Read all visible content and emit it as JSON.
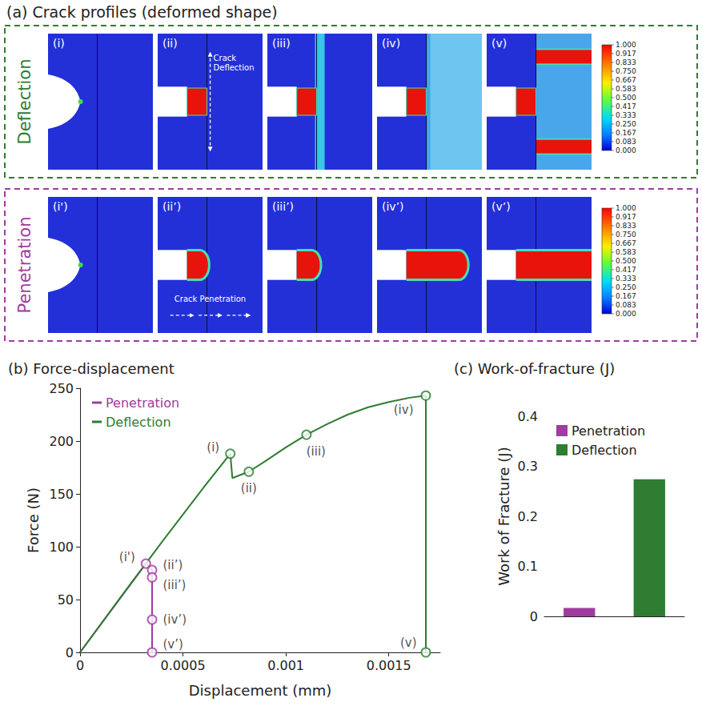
{
  "panel_a": {
    "title": "(a) Crack profiles (deformed shape)",
    "rows": [
      {
        "label": "Deflection",
        "color": "#2e7d32",
        "frames": [
          "(i)",
          "(ii)",
          "(iii)",
          "(iv)",
          "(v)"
        ],
        "annotation": "Crack Deflection"
      },
      {
        "label": "Penetration",
        "color": "#a03ca0",
        "frames": [
          "(i')",
          "(ii’)",
          "(iii’)",
          "(iv’)",
          "(v’)"
        ],
        "annotation": "Crack Penetration"
      }
    ],
    "colorbar": {
      "range": [
        0,
        1
      ],
      "ticks": [
        {
          "value": 1,
          "label": "1.000"
        },
        0.917,
        0.833,
        {
          "value": 0.75,
          "label": "0.750"
        },
        0.667,
        0.583,
        {
          "value": 0.5,
          "label": "0.500"
        },
        0.417,
        0.333,
        {
          "value": 0.25,
          "label": "0.250"
        },
        0.167,
        0.083,
        {
          "value": 0,
          "label": "0.000"
        }
      ]
    }
  },
  "chart_data": [
    {
      "type": "line",
      "title": "(b) Force-displacement",
      "x_label": "Displacement (mm)",
      "y_label": "Force (N)",
      "xlim": [
        0,
        0.00175
      ],
      "xticks": [
        0,
        0.0005,
        0.001,
        0.0015
      ],
      "ylim": [
        0,
        250
      ],
      "yticks": [
        0,
        50,
        100,
        150,
        200,
        250
      ],
      "grid": false,
      "legend": "upper left",
      "series": [
        {
          "name": "Penetration",
          "color": "#a03ca0",
          "x": [
            0,
            0.00032,
            0.00035,
            0.00035,
            0.00035,
            0.00035
          ],
          "values": [
            0,
            84,
            78,
            71,
            31,
            0
          ],
          "points": [
            {
              "x": 0.00032,
              "y": 84,
              "label": "(i')"
            },
            {
              "x": 0.00035,
              "y": 78,
              "label": "(ii’)"
            },
            {
              "x": 0.00035,
              "y": 71,
              "label": "(iii’)"
            },
            {
              "x": 0.00035,
              "y": 31,
              "label": "(iv’)"
            },
            {
              "x": 0.00035,
              "y": 0,
              "label": "(v’)"
            }
          ]
        },
        {
          "name": "Deflection",
          "color": "#2e7d32",
          "x": [
            0,
            0.0002,
            0.0004,
            0.0006,
            0.00073,
            0.00074,
            0.00082,
            0.0009,
            0.001,
            0.0011,
            0.0012,
            0.0013,
            0.0014,
            0.0015,
            0.0016,
            0.00168,
            0.00168
          ],
          "values": [
            0,
            53,
            105,
            156,
            188,
            165,
            171,
            181,
            194,
            206,
            216,
            225,
            232,
            237,
            241,
            243,
            0
          ],
          "points": [
            {
              "x": 0.00073,
              "y": 188,
              "label": "(i)"
            },
            {
              "x": 0.00082,
              "y": 171,
              "label": "(ii)"
            },
            {
              "x": 0.0011,
              "y": 206,
              "label": "(iii)"
            },
            {
              "x": 0.00168,
              "y": 243,
              "label": "(iv)"
            },
            {
              "x": 0.00168,
              "y": 0,
              "label": "(v)"
            }
          ]
        }
      ]
    },
    {
      "type": "bar",
      "title": "(c) Work-of-fracture (J)",
      "y_label": "Work of Fracture (J)",
      "categories": [
        null,
        null
      ],
      "ylim": [
        0,
        0.4
      ],
      "yticks": [
        0,
        0.1,
        0.2,
        0.3,
        0.4
      ],
      "grid": false,
      "legend": "upper left",
      "tick_labels": "y",
      "series": [
        {
          "name": "Penetration",
          "color": "#a03ca0",
          "values": [
            0.017,
            null
          ]
        },
        {
          "name": "Deflection",
          "color": "#2e7d32",
          "values": [
            null,
            0.274
          ]
        }
      ]
    }
  ]
}
